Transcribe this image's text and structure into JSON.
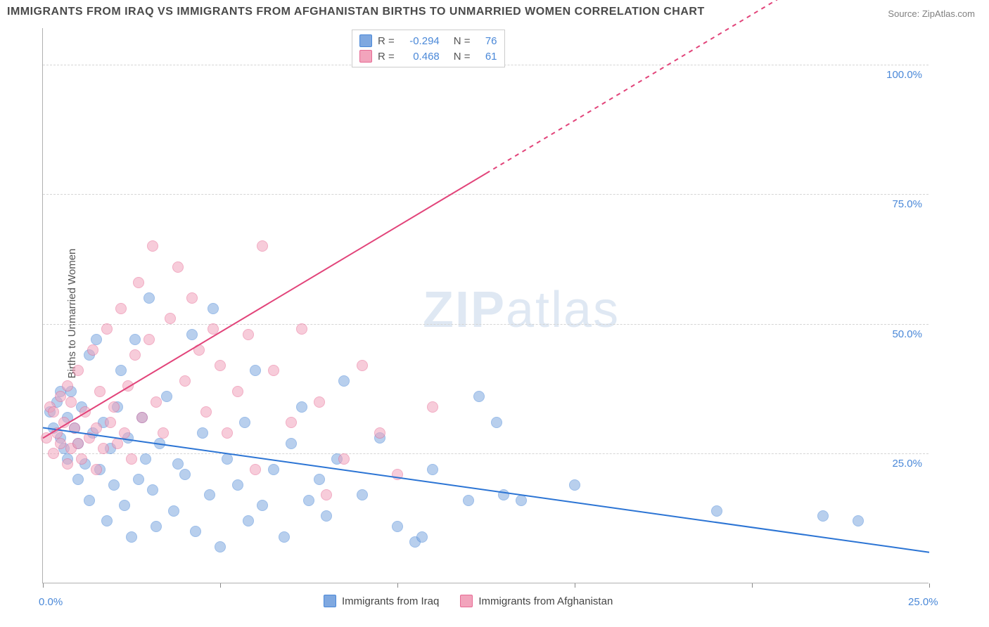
{
  "title": "IMMIGRANTS FROM IRAQ VS IMMIGRANTS FROM AFGHANISTAN BIRTHS TO UNMARRIED WOMEN CORRELATION CHART",
  "source_label": "Source:",
  "source_name": "ZipAtlas.com",
  "watermark_bold": "ZIP",
  "watermark_light": "atlas",
  "chart": {
    "type": "scatter",
    "background_color": "#ffffff",
    "grid_color": "#d5d5d5",
    "axis_color": "#b0b0b0",
    "label_color": "#4a88d8",
    "ylabel": "Births to Unmarried Women",
    "ylabel_fontsize": 15,
    "xlim": [
      0,
      25
    ],
    "ylim": [
      0,
      107
    ],
    "xtick_positions": [
      0,
      5,
      10,
      15,
      20,
      25
    ],
    "xtick_labels": [
      "0.0%",
      "",
      "",
      "",
      "",
      "25.0%"
    ],
    "ytick_positions": [
      25,
      50,
      75,
      100
    ],
    "ytick_labels": [
      "25.0%",
      "50.0%",
      "75.0%",
      "100.0%"
    ],
    "point_radius": 8,
    "point_opacity": 0.55,
    "trend_line_width": 2,
    "series": [
      {
        "name": "Immigrants from Iraq",
        "color": "#7fa8e0",
        "stroke": "#4a88d8",
        "r_value": "-0.294",
        "n_value": "76",
        "trend": {
          "x1": 0,
          "y1": 30,
          "x2": 25,
          "y2": 6,
          "color": "#2b74d4",
          "dash_from_x": null
        },
        "points": [
          [
            0.2,
            33
          ],
          [
            0.3,
            30
          ],
          [
            0.4,
            35
          ],
          [
            0.5,
            28
          ],
          [
            0.5,
            37
          ],
          [
            0.6,
            26
          ],
          [
            0.7,
            32
          ],
          [
            0.7,
            24
          ],
          [
            0.8,
            37
          ],
          [
            0.9,
            30
          ],
          [
            1.0,
            20
          ],
          [
            1.0,
            27
          ],
          [
            1.1,
            34
          ],
          [
            1.2,
            23
          ],
          [
            1.3,
            44
          ],
          [
            1.3,
            16
          ],
          [
            1.4,
            29
          ],
          [
            1.5,
            47
          ],
          [
            1.6,
            22
          ],
          [
            1.7,
            31
          ],
          [
            1.8,
            12
          ],
          [
            1.9,
            26
          ],
          [
            2.0,
            19
          ],
          [
            2.1,
            34
          ],
          [
            2.2,
            41
          ],
          [
            2.3,
            15
          ],
          [
            2.4,
            28
          ],
          [
            2.5,
            9
          ],
          [
            2.6,
            47
          ],
          [
            2.7,
            20
          ],
          [
            2.8,
            32
          ],
          [
            2.9,
            24
          ],
          [
            3.0,
            55
          ],
          [
            3.1,
            18
          ],
          [
            3.2,
            11
          ],
          [
            3.3,
            27
          ],
          [
            3.5,
            36
          ],
          [
            3.7,
            14
          ],
          [
            3.8,
            23
          ],
          [
            4.0,
            21
          ],
          [
            4.2,
            48
          ],
          [
            4.3,
            10
          ],
          [
            4.5,
            29
          ],
          [
            4.7,
            17
          ],
          [
            4.8,
            53
          ],
          [
            5.0,
            7
          ],
          [
            5.2,
            24
          ],
          [
            5.5,
            19
          ],
          [
            5.7,
            31
          ],
          [
            5.8,
            12
          ],
          [
            6.0,
            41
          ],
          [
            6.2,
            15
          ],
          [
            6.5,
            22
          ],
          [
            6.8,
            9
          ],
          [
            7.0,
            27
          ],
          [
            7.3,
            34
          ],
          [
            7.5,
            16
          ],
          [
            7.8,
            20
          ],
          [
            8.0,
            13
          ],
          [
            8.3,
            24
          ],
          [
            8.5,
            39
          ],
          [
            9.0,
            17
          ],
          [
            9.5,
            28
          ],
          [
            10.0,
            11
          ],
          [
            10.5,
            8
          ],
          [
            10.7,
            9
          ],
          [
            11.0,
            22
          ],
          [
            12.0,
            16
          ],
          [
            12.3,
            36
          ],
          [
            12.8,
            31
          ],
          [
            13.0,
            17
          ],
          [
            13.5,
            16
          ],
          [
            15.0,
            19
          ],
          [
            19.0,
            14
          ],
          [
            22.0,
            13
          ],
          [
            23.0,
            12
          ]
        ]
      },
      {
        "name": "Immigrants from Afghanistan",
        "color": "#f2a4bc",
        "stroke": "#e76a94",
        "r_value": "0.468",
        "n_value": "61",
        "trend": {
          "x1": 0,
          "y1": 28,
          "x2": 25,
          "y2": 130,
          "color": "#e2447a",
          "dash_from_x": 12.5
        },
        "points": [
          [
            0.1,
            28
          ],
          [
            0.2,
            34
          ],
          [
            0.3,
            25
          ],
          [
            0.3,
            33
          ],
          [
            0.4,
            29
          ],
          [
            0.5,
            27
          ],
          [
            0.5,
            36
          ],
          [
            0.6,
            31
          ],
          [
            0.7,
            23
          ],
          [
            0.7,
            38
          ],
          [
            0.8,
            26
          ],
          [
            0.8,
            35
          ],
          [
            0.9,
            30
          ],
          [
            1.0,
            27
          ],
          [
            1.0,
            41
          ],
          [
            1.1,
            24
          ],
          [
            1.2,
            33
          ],
          [
            1.3,
            28
          ],
          [
            1.4,
            45
          ],
          [
            1.5,
            30
          ],
          [
            1.5,
            22
          ],
          [
            1.6,
            37
          ],
          [
            1.7,
            26
          ],
          [
            1.8,
            49
          ],
          [
            1.9,
            31
          ],
          [
            2.0,
            34
          ],
          [
            2.1,
            27
          ],
          [
            2.2,
            53
          ],
          [
            2.3,
            29
          ],
          [
            2.4,
            38
          ],
          [
            2.5,
            24
          ],
          [
            2.6,
            44
          ],
          [
            2.7,
            58
          ],
          [
            2.8,
            32
          ],
          [
            3.0,
            47
          ],
          [
            3.1,
            65
          ],
          [
            3.2,
            35
          ],
          [
            3.4,
            29
          ],
          [
            3.6,
            51
          ],
          [
            3.8,
            61
          ],
          [
            4.0,
            39
          ],
          [
            4.2,
            55
          ],
          [
            4.4,
            45
          ],
          [
            4.6,
            33
          ],
          [
            4.8,
            49
          ],
          [
            5.0,
            42
          ],
          [
            5.2,
            29
          ],
          [
            5.5,
            37
          ],
          [
            5.8,
            48
          ],
          [
            6.0,
            22
          ],
          [
            6.2,
            65
          ],
          [
            6.5,
            41
          ],
          [
            7.0,
            31
          ],
          [
            7.3,
            49
          ],
          [
            7.8,
            35
          ],
          [
            8.0,
            17
          ],
          [
            8.5,
            24
          ],
          [
            9.0,
            42
          ],
          [
            9.5,
            29
          ],
          [
            10.0,
            21
          ],
          [
            11.0,
            34
          ]
        ]
      }
    ],
    "legend_top": {
      "r_label": "R =",
      "n_label": "N ="
    }
  }
}
